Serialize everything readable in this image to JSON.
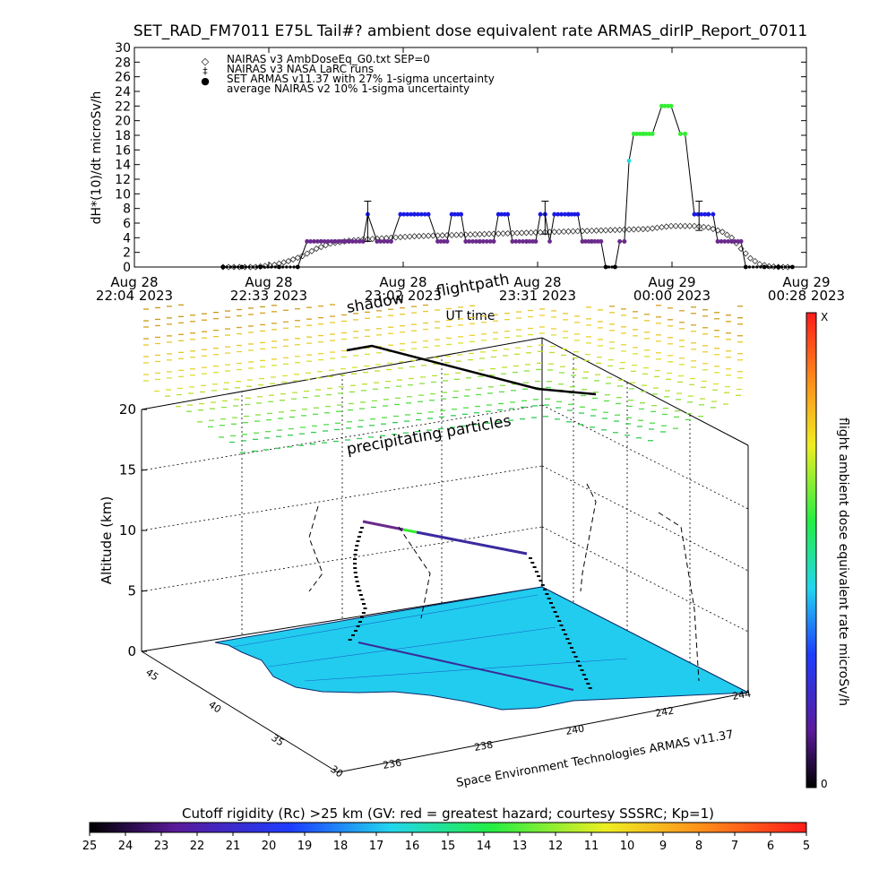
{
  "title": "SET_RAD_FM7011   E75L Tail#? ambient dose equivalent rate ARMAS_dirIP_Report_07011",
  "top_chart": {
    "ylabel": "dH*(10)/dt microSv/h",
    "xlabel": "UT time",
    "yticks": [
      "0",
      "2",
      "4",
      "6",
      "8",
      "10",
      "12",
      "14",
      "16",
      "18",
      "20",
      "22",
      "24",
      "26",
      "28",
      "30"
    ],
    "xticks": [
      {
        "l1": "Aug 28",
        "l2": "22:04 2023"
      },
      {
        "l1": "Aug 28",
        "l2": "22:33 2023"
      },
      {
        "l1": "Aug 28",
        "l2": "23:02 2023"
      },
      {
        "l1": "Aug 28",
        "l2": "23:31 2023"
      },
      {
        "l1": "Aug 29",
        "l2": "00:00 2023"
      },
      {
        "l1": "Aug 29",
        "l2": "00:28 2023"
      }
    ],
    "legend": [
      {
        "marker": "◇",
        "label": "NAIRAS v3 AmbDoseEq_G0.txt SEP=0"
      },
      {
        "marker": "‡",
        "label": "NAIRAS v3 NASA LaRC runs"
      },
      {
        "marker": "●",
        "label": "SET ARMAS v11.37 with 27% 1-sigma uncertainty"
      },
      {
        "marker": "",
        "label": "average NAIRAS v2 10% 1-sigma uncertainty"
      }
    ]
  },
  "chart_data": [
    {
      "type": "line",
      "title": "SET_RAD_FM7011   E75L Tail#? ambient dose equivalent rate ARMAS_dirIP_Report_07011",
      "xlabel": "UT time",
      "ylabel": "dH*(10)/dt microSv/h",
      "x_unit": "minutes after Aug 28 22:04 UT",
      "xlim": [
        0,
        144
      ],
      "ylim": [
        0,
        30
      ],
      "x_tick_labels": [
        "Aug 28 22:04 2023",
        "Aug 28 22:33 2023",
        "Aug 28 23:02 2023",
        "Aug 28 23:31 2023",
        "Aug 29 00:00 2023",
        "Aug 29 00:28 2023"
      ],
      "series": [
        {
          "name": "SET ARMAS v11.37 with 27% 1-sigma uncertainty",
          "style": "line+dots",
          "points": [
            [
              19,
              0
            ],
            [
              23,
              0
            ],
            [
              27,
              0
            ],
            [
              31,
              0
            ],
            [
              35,
              0
            ],
            [
              37,
              3.5
            ],
            [
              40,
              3.5
            ],
            [
              43,
              3.5
            ],
            [
              46,
              3.5
            ],
            [
              49,
              3.5
            ],
            [
              50,
              7.2
            ],
            [
              52,
              3.5
            ],
            [
              55,
              3.5
            ],
            [
              57,
              7.2
            ],
            [
              60,
              7.2
            ],
            [
              63,
              7.2
            ],
            [
              65,
              3.5
            ],
            [
              67,
              3.5
            ],
            [
              68,
              7.2
            ],
            [
              70,
              7.2
            ],
            [
              71,
              3.5
            ],
            [
              74,
              3.5
            ],
            [
              77,
              3.5
            ],
            [
              78,
              7.2
            ],
            [
              80,
              7.2
            ],
            [
              81,
              3.5
            ],
            [
              84,
              3.5
            ],
            [
              86,
              3.5
            ],
            [
              87,
              7.2
            ],
            [
              88,
              7.2
            ],
            [
              89,
              3.5
            ],
            [
              90,
              7.2
            ],
            [
              93,
              7.2
            ],
            [
              95,
              7.2
            ],
            [
              96,
              3.5
            ],
            [
              98,
              3.5
            ],
            [
              100,
              3.5
            ],
            [
              101,
              0
            ],
            [
              103,
              0
            ],
            [
              104,
              3.5
            ],
            [
              105,
              3.5
            ],
            [
              106,
              14.5
            ],
            [
              107,
              18.2
            ],
            [
              109,
              18.2
            ],
            [
              111,
              18.2
            ],
            [
              113,
              22
            ],
            [
              115,
              22
            ],
            [
              117,
              18.2
            ],
            [
              118,
              18.2
            ],
            [
              120,
              7.2
            ],
            [
              123,
              7.2
            ],
            [
              124,
              7.2
            ],
            [
              125,
              3.5
            ],
            [
              128,
              3.5
            ],
            [
              130,
              3.5
            ],
            [
              131,
              0
            ],
            [
              135,
              0
            ],
            [
              138,
              0
            ],
            [
              141,
              0
            ]
          ],
          "point_colors": {
            "3.5": "#6a2a8c",
            "7.2": "#1a1ae6",
            "18.2": "#33ee33",
            "22": "#33ee33",
            "14.5": "#22dddd",
            "0": "#000000"
          }
        },
        {
          "name": "NAIRAS v3 AmbDoseEq_G0.txt SEP=0",
          "style": "diamonds",
          "points": [
            [
              19,
              0
            ],
            [
              26,
              0
            ],
            [
              30,
              0.3
            ],
            [
              33,
              0.8
            ],
            [
              36,
              1.5
            ],
            [
              39,
              2.5
            ],
            [
              42,
              3.2
            ],
            [
              46,
              3.6
            ],
            [
              50,
              3.8
            ],
            [
              55,
              4.0
            ],
            [
              60,
              4.2
            ],
            [
              65,
              4.3
            ],
            [
              70,
              4.4
            ],
            [
              75,
              4.5
            ],
            [
              80,
              4.6
            ],
            [
              85,
              4.7
            ],
            [
              90,
              4.8
            ],
            [
              95,
              4.9
            ],
            [
              100,
              5.0
            ],
            [
              105,
              5.1
            ],
            [
              110,
              5.2
            ],
            [
              115,
              5.6
            ],
            [
              120,
              5.6
            ],
            [
              123,
              5.4
            ],
            [
              126,
              4.8
            ],
            [
              128,
              4.0
            ],
            [
              130,
              2.5
            ],
            [
              132,
              1.2
            ],
            [
              134,
              0.4
            ],
            [
              136,
              0.1
            ],
            [
              138,
              0
            ],
            [
              141,
              0
            ]
          ]
        },
        {
          "name": "NAIRAS v3 NASA LaRC runs",
          "style": "errorbars",
          "points": [
            {
              "x": 50,
              "y": 4.0,
              "low": 3.5,
              "high": 9.0
            },
            {
              "x": 88,
              "y": 5.0,
              "low": 4.5,
              "high": 9.0
            },
            {
              "x": 121,
              "y": 5.5,
              "low": 5.0,
              "high": 9.0
            }
          ]
        }
      ]
    },
    {
      "type": "3d-surface",
      "zlabel": "Altitude (km)",
      "z_ticks": [
        "0",
        "5",
        "10",
        "15",
        "20"
      ],
      "lat_ticks": [
        "45",
        "40",
        "35",
        "30"
      ],
      "lon_ticks": [
        "236",
        "238",
        "240",
        "242",
        "244"
      ],
      "annotations": [
        "shadow",
        "flightpath",
        "precipitating particles"
      ],
      "credit": "Space Environment Technologies ARMAS v11.37"
    }
  ],
  "colorbar_right": {
    "label": "flight ambient dose equivalent rate microSv/h",
    "top_label": "X",
    "bottom_label": "0"
  },
  "colorbar_bottom": {
    "title": "Cutoff rigidity (Rc) >25 km (GV: red = greatest hazard; courtesy SSSRC; Kp=1)",
    "ticks": [
      "25",
      "24",
      "23",
      "22",
      "21",
      "20",
      "19",
      "18",
      "17",
      "16",
      "15",
      "14",
      "13",
      "12",
      "11",
      "10",
      "9",
      "8",
      "7",
      "6",
      "5"
    ]
  },
  "colors": {
    "armas_purple": "#6a2a8c",
    "armas_blue": "#1a1ae6",
    "armas_green": "#33ee33",
    "armas_cyan": "#22dddd",
    "land": "#22ccee"
  }
}
